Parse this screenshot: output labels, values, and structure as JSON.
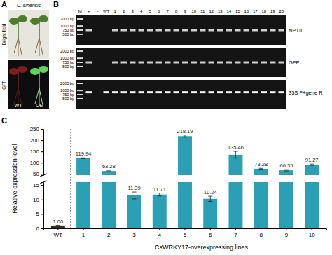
{
  "panel_a": {
    "label": "A",
    "title": "C. sinensis",
    "rows": [
      "Bright field",
      "GFP"
    ],
    "columns": [
      "WT",
      "OE"
    ]
  },
  "panel_b": {
    "label": "B",
    "lanes": [
      "M",
      "+",
      "-",
      "WT",
      "1",
      "2",
      "3",
      "4",
      "5",
      "6",
      "7",
      "8",
      "9",
      "10",
      "11",
      "12",
      "13",
      "14",
      "15",
      "16",
      "17",
      "18",
      "19",
      "20"
    ],
    "ladder": [
      "2000 bp",
      "1000 bp",
      "750 bp",
      "500 bp"
    ],
    "gels": [
      "NPTII",
      "GFP",
      "35S F+gene R"
    ]
  },
  "chart_data": {
    "panel_label": "C",
    "type": "bar",
    "categories": [
      "WT",
      "1",
      "2",
      "3",
      "4",
      "5",
      "6",
      "7",
      "8",
      "9",
      "10"
    ],
    "values": [
      1.0,
      119.94,
      63.28,
      11.39,
      11.71,
      218.19,
      10.24,
      135.46,
      73.28,
      66.35,
      91.27
    ],
    "value_labels": [
      "1.00",
      "119.94",
      "63.28",
      "11.39",
      "11.71",
      "218.19",
      "10.24",
      "135.46",
      "73.28",
      "66.35",
      "91.27"
    ],
    "errors": [
      0.05,
      2.0,
      3.0,
      1.2,
      0.5,
      5.0,
      0.9,
      15.0,
      2.0,
      3.0,
      3.0
    ],
    "colors": [
      "#3b2a20",
      "#2b9fb3",
      "#2b9fb3",
      "#2b9fb3",
      "#2b9fb3",
      "#2b9fb3",
      "#2b9fb3",
      "#2b9fb3",
      "#2b9fb3",
      "#2b9fb3",
      "#2b9fb3"
    ],
    "ylabel": "Relative expression level",
    "xlabel": "CsWRKY17-overexpressing lines",
    "ylim": [
      0,
      250
    ],
    "yticks": [
      0,
      5,
      10,
      15,
      50,
      100,
      150,
      200,
      250
    ],
    "axis_break": [
      16,
      45
    ],
    "data_labels": true
  }
}
